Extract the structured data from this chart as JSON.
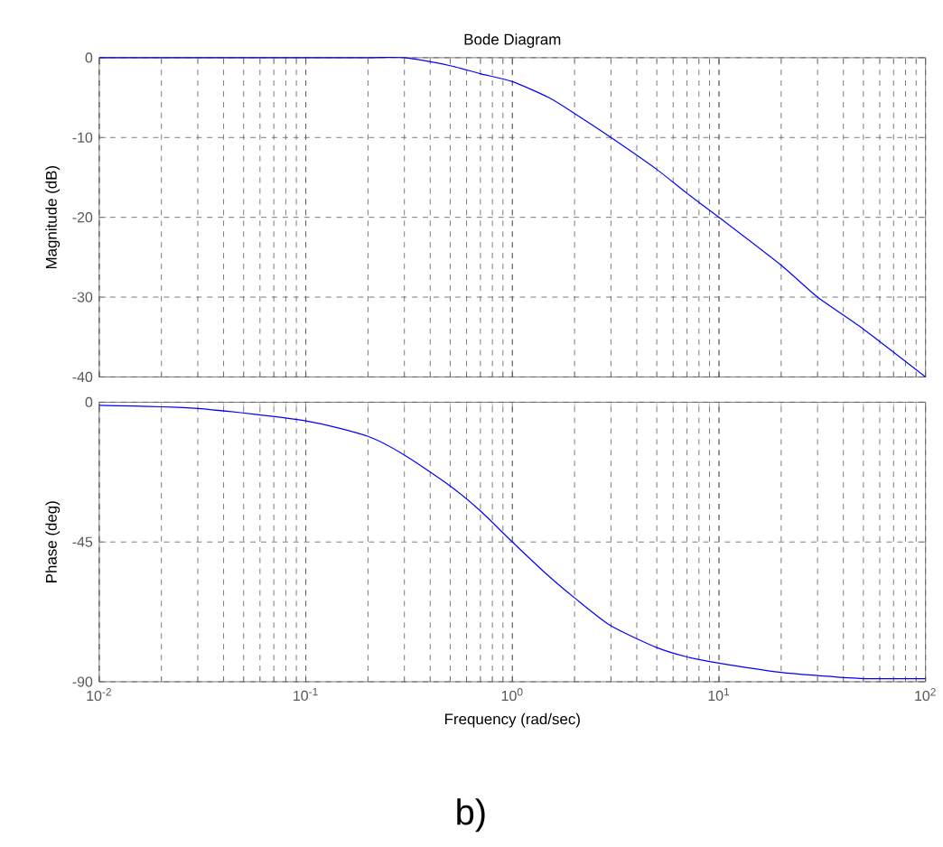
{
  "chart_data": [
    {
      "type": "line",
      "title": "Bode Diagram",
      "ylabel": "Magnitude (dB)",
      "log": "x",
      "grid": true,
      "tick_labels": "y",
      "xlim": [
        0.01,
        100
      ],
      "ylim": [
        -40,
        0
      ],
      "xticks": [
        {
          "value": 0.01,
          "label": null
        },
        {
          "value": 0.1,
          "label": null
        },
        {
          "value": 1,
          "label": null
        },
        {
          "value": 10,
          "label": null
        },
        {
          "value": 100,
          "label": null
        }
      ],
      "yticks": [
        -40,
        -30,
        -20,
        -10,
        0
      ],
      "x": [
        0.01,
        0.1,
        0.2,
        0.3,
        0.5,
        0.7,
        1,
        1.5,
        2,
        3,
        5,
        7,
        10,
        20,
        30,
        50,
        100
      ],
      "series": [
        {
          "color": "#0000ff",
          "values": [
            0,
            0,
            0,
            0,
            -1,
            -2,
            -3,
            -5,
            -7,
            -10,
            -14,
            -17,
            -20,
            -26,
            -30,
            -34,
            -40
          ]
        }
      ]
    },
    {
      "type": "line",
      "xlabel": "Frequency  (rad/sec)",
      "ylabel": "Phase (deg)",
      "log": "x",
      "grid": true,
      "xlim": [
        0.01,
        100
      ],
      "ylim": [
        -90,
        0
      ],
      "xticks": [
        {
          "value": 0.01,
          "label": "10$^{-2}$"
        },
        {
          "value": 0.1,
          "label": "10$^{-1}$"
        },
        {
          "value": 1,
          "label": "10$^{0}$"
        },
        {
          "value": 10,
          "label": "10$^{1}$"
        },
        {
          "value": 100,
          "label": "10$^{2}$"
        }
      ],
      "yticks": [
        -90,
        -45,
        0
      ],
      "x": [
        0.01,
        0.03,
        0.1,
        0.2,
        0.3,
        0.5,
        0.7,
        1,
        1.5,
        2,
        3,
        5,
        7,
        10,
        20,
        30,
        50,
        100
      ],
      "series": [
        {
          "color": "#0000ff",
          "values": [
            -1,
            -2,
            -6,
            -11,
            -17,
            -27,
            -35,
            -45,
            -56,
            -63,
            -72,
            -79,
            -82,
            -84,
            -87,
            -88,
            -89,
            -89
          ]
        }
      ],
      "annotations": [
        "b)"
      ]
    }
  ]
}
